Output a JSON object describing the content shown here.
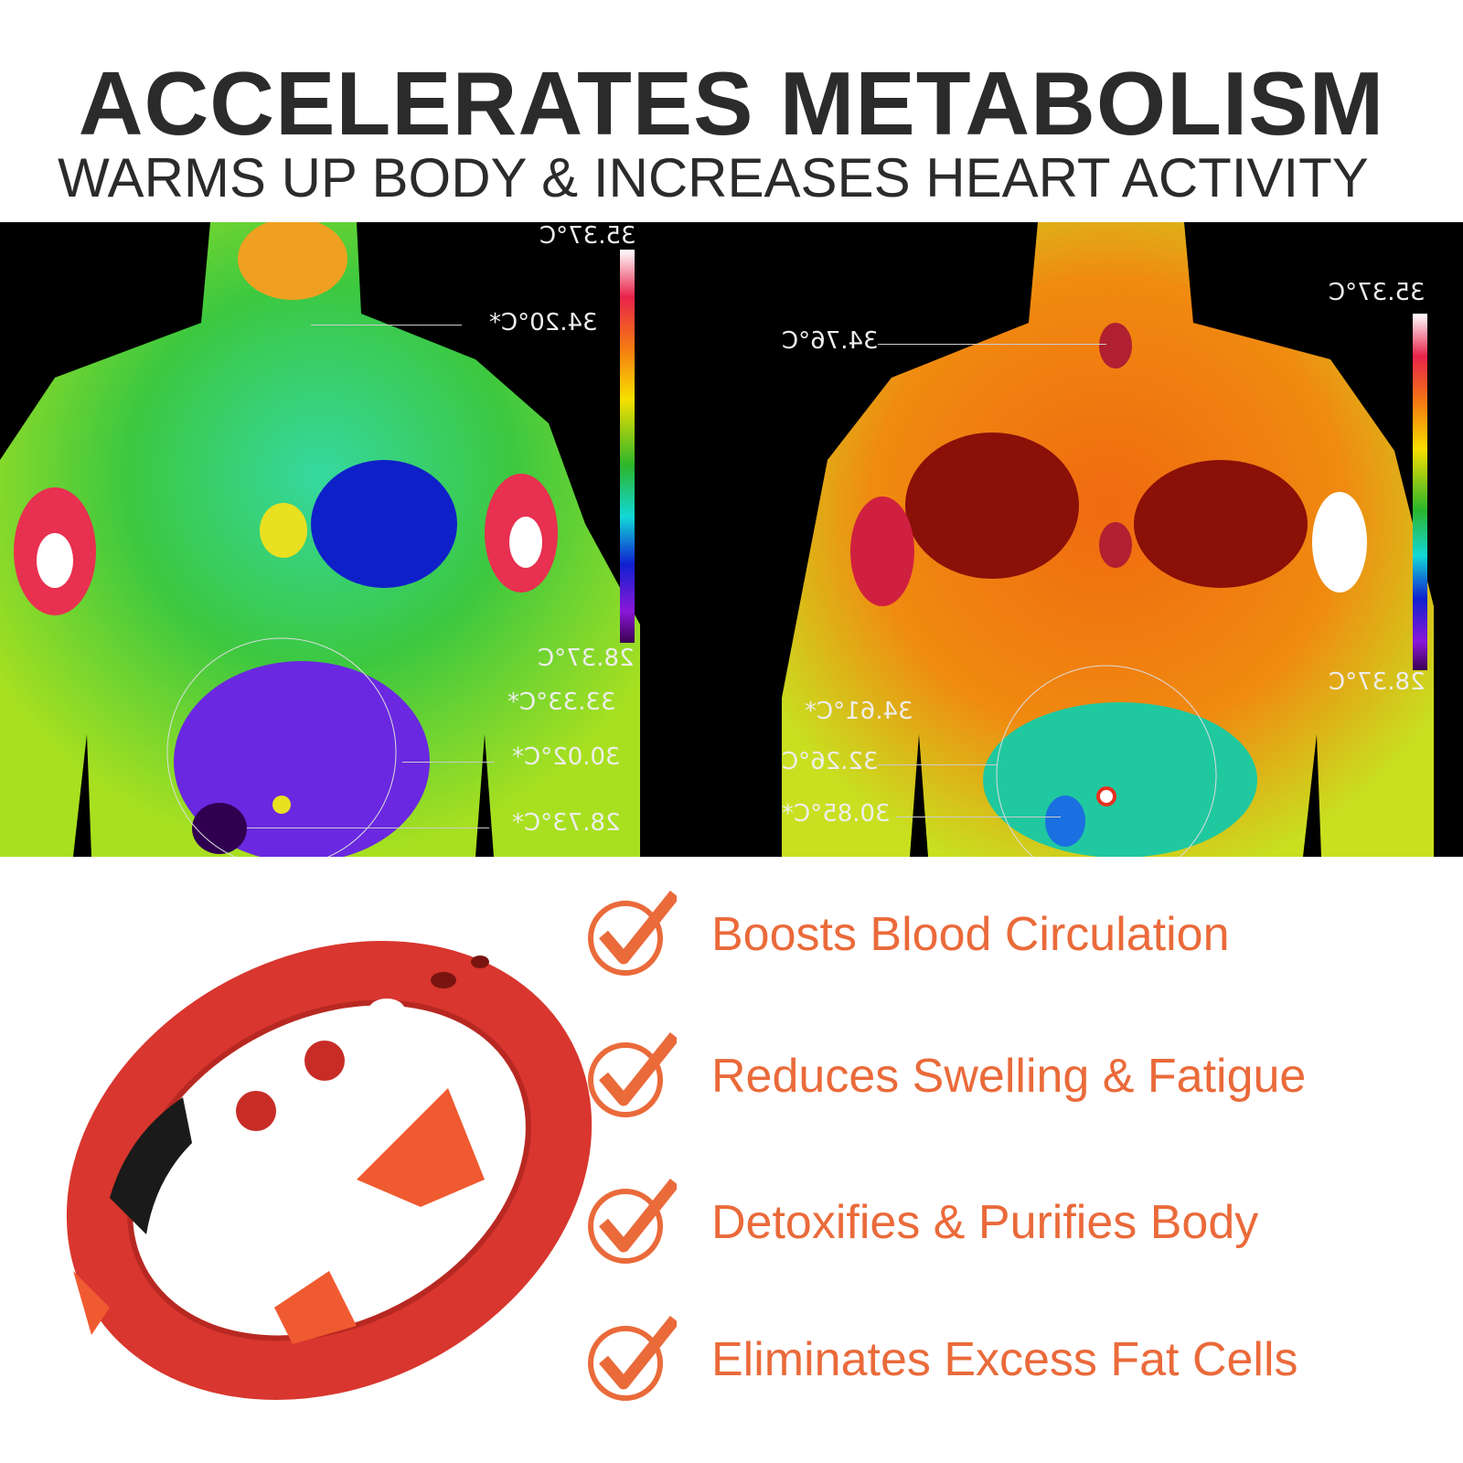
{
  "header": {
    "title": "ACCELERATES METABOLISM",
    "subtitle": "WARMS UP BODY & INCREASES HEART ACTIVITY"
  },
  "thermal_before": {
    "scale_max": "35.37°C",
    "scale_min": "28.37°C",
    "readings": [
      "34.20°C*",
      "33.33°C*",
      "30.02°C*",
      "28.73°C*"
    ]
  },
  "thermal_after": {
    "scale_max": "35.37°C",
    "scale_min": "28.37°C",
    "readings": [
      "34.76°C",
      "34.61°C*",
      "32.26°C",
      "30.85°C*"
    ]
  },
  "benefits": [
    {
      "label": "Boosts Blood Circulation",
      "icon": "check-circle-icon"
    },
    {
      "label": "Reduces Swelling & Fatigue",
      "icon": "check-circle-icon"
    },
    {
      "label": "Detoxifies & Purifies Body",
      "icon": "check-circle-icon"
    },
    {
      "label": "Eliminates Excess Fat Cells",
      "icon": "check-circle-icon"
    }
  ],
  "colors": {
    "accent": "#ea6a3a",
    "title": "#2b2b2b",
    "bracelet": "#d8362e"
  }
}
